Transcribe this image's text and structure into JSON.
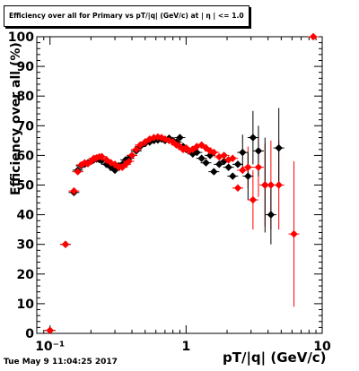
{
  "chart_data": {
    "type": "scatter",
    "title": "Efficiency over all for Primary vs pT/|q| (GeV/c) at | η | <= 1.0",
    "xlabel": "pT/|q| (GeV/c)",
    "ylabel": "Efficiency over all (%)",
    "x_scale": "log",
    "xlim": [
      0.08,
      10
    ],
    "ylim": [
      0,
      100
    ],
    "x_tick_labels": [
      "10⁻¹",
      "1",
      "10"
    ],
    "y_tick_labels": [
      "0",
      "10",
      "20",
      "30",
      "40",
      "50",
      "60",
      "70",
      "80",
      "90",
      "100"
    ],
    "grid": false,
    "series": [
      {
        "color": "#000000",
        "marker": "diamond",
        "points": [
          {
            "x": 0.1,
            "y": 1
          },
          {
            "x": 0.13,
            "y": 30
          },
          {
            "x": 0.15,
            "y": 47.5
          },
          {
            "x": 0.16,
            "y": 55
          },
          {
            "x": 0.17,
            "y": 56.5
          },
          {
            "x": 0.18,
            "y": 57
          },
          {
            "x": 0.19,
            "y": 57.5
          },
          {
            "x": 0.2,
            "y": 58
          },
          {
            "x": 0.21,
            "y": 58.5
          },
          {
            "x": 0.22,
            "y": 58.8
          },
          {
            "x": 0.23,
            "y": 58.6
          },
          {
            "x": 0.24,
            "y": 58.2
          },
          {
            "x": 0.26,
            "y": 57
          },
          {
            "x": 0.28,
            "y": 56
          },
          {
            "x": 0.3,
            "y": 55
          },
          {
            "x": 0.32,
            "y": 56.5
          },
          {
            "x": 0.34,
            "y": 57
          },
          {
            "x": 0.36,
            "y": 58.5
          },
          {
            "x": 0.38,
            "y": 59
          },
          {
            "x": 0.4,
            "y": 60
          },
          {
            "x": 0.43,
            "y": 61.5
          },
          {
            "x": 0.46,
            "y": 63
          },
          {
            "x": 0.5,
            "y": 64
          },
          {
            "x": 0.54,
            "y": 64.5
          },
          {
            "x": 0.58,
            "y": 65
          },
          {
            "x": 0.62,
            "y": 65.2
          },
          {
            "x": 0.66,
            "y": 65.5
          },
          {
            "x": 0.7,
            "y": 65
          },
          {
            "x": 0.75,
            "y": 65.8
          },
          {
            "x": 0.8,
            "y": 65
          },
          {
            "x": 0.85,
            "y": 64.5
          },
          {
            "x": 0.9,
            "y": 66
          },
          {
            "x": 0.95,
            "y": 63
          },
          {
            "x": 1.0,
            "y": 62
          },
          {
            "x": 1.05,
            "y": 61.5
          },
          {
            "x": 1.12,
            "y": 60.5
          },
          {
            "x": 1.2,
            "y": 61
          },
          {
            "x": 1.3,
            "y": 59
          },
          {
            "x": 1.4,
            "y": 57.5
          },
          {
            "x": 1.5,
            "y": 60
          },
          {
            "x": 1.6,
            "y": 54.5
          },
          {
            "x": 1.75,
            "y": 57
          },
          {
            "x": 1.9,
            "y": 58
          },
          {
            "x": 2.05,
            "y": 56
          },
          {
            "x": 2.2,
            "y": 53
          },
          {
            "x": 2.4,
            "y": 57
          },
          {
            "x": 2.6,
            "y": 61
          },
          {
            "x": 2.85,
            "y": 53
          },
          {
            "x": 3.1,
            "y": 66
          },
          {
            "x": 3.4,
            "y": 61.5
          },
          {
            "x": 3.8,
            "y": 50
          },
          {
            "x": 4.2,
            "y": 40
          },
          {
            "x": 4.8,
            "y": 62.5
          }
        ]
      },
      {
        "color": "#ff0000",
        "marker": "diamond",
        "points": [
          {
            "x": 0.1,
            "y": 1
          },
          {
            "x": 0.13,
            "y": 30
          },
          {
            "x": 0.15,
            "y": 48
          },
          {
            "x": 0.16,
            "y": 54.5
          },
          {
            "x": 0.17,
            "y": 56.8
          },
          {
            "x": 0.18,
            "y": 57.5
          },
          {
            "x": 0.19,
            "y": 57.2
          },
          {
            "x": 0.2,
            "y": 58
          },
          {
            "x": 0.21,
            "y": 59
          },
          {
            "x": 0.22,
            "y": 59.2
          },
          {
            "x": 0.23,
            "y": 59.5
          },
          {
            "x": 0.24,
            "y": 59.6
          },
          {
            "x": 0.26,
            "y": 58.5
          },
          {
            "x": 0.28,
            "y": 57.5
          },
          {
            "x": 0.3,
            "y": 57
          },
          {
            "x": 0.32,
            "y": 56
          },
          {
            "x": 0.34,
            "y": 56
          },
          {
            "x": 0.36,
            "y": 57
          },
          {
            "x": 0.38,
            "y": 58
          },
          {
            "x": 0.4,
            "y": 60
          },
          {
            "x": 0.43,
            "y": 62
          },
          {
            "x": 0.46,
            "y": 63.5
          },
          {
            "x": 0.5,
            "y": 64.5
          },
          {
            "x": 0.54,
            "y": 65.5
          },
          {
            "x": 0.58,
            "y": 66
          },
          {
            "x": 0.62,
            "y": 66.2
          },
          {
            "x": 0.66,
            "y": 66
          },
          {
            "x": 0.7,
            "y": 65.5
          },
          {
            "x": 0.75,
            "y": 65
          },
          {
            "x": 0.8,
            "y": 64.5
          },
          {
            "x": 0.85,
            "y": 63.5
          },
          {
            "x": 0.9,
            "y": 63
          },
          {
            "x": 0.95,
            "y": 62
          },
          {
            "x": 1.0,
            "y": 62.5
          },
          {
            "x": 1.05,
            "y": 61.5
          },
          {
            "x": 1.12,
            "y": 62
          },
          {
            "x": 1.2,
            "y": 63
          },
          {
            "x": 1.3,
            "y": 63.5
          },
          {
            "x": 1.4,
            "y": 62.5
          },
          {
            "x": 1.5,
            "y": 61.5
          },
          {
            "x": 1.6,
            "y": 61
          },
          {
            "x": 1.75,
            "y": 59.5
          },
          {
            "x": 1.9,
            "y": 60
          },
          {
            "x": 2.05,
            "y": 58.5
          },
          {
            "x": 2.2,
            "y": 59
          },
          {
            "x": 2.4,
            "y": 49
          },
          {
            "x": 2.6,
            "y": 55
          },
          {
            "x": 2.85,
            "y": 56
          },
          {
            "x": 3.1,
            "y": 45
          },
          {
            "x": 3.4,
            "y": 56
          },
          {
            "x": 3.8,
            "y": 50
          },
          {
            "x": 4.2,
            "y": 50
          },
          {
            "x": 4.8,
            "y": 50
          },
          {
            "x": 6.2,
            "y": 33.5
          },
          {
            "x": 8.6,
            "y": 100
          }
        ],
        "error_bars": [
          {
            "x": 2.85,
            "low": 49,
            "high": 63
          },
          {
            "x": 3.1,
            "low": 35,
            "high": 55
          },
          {
            "x": 3.4,
            "low": 46,
            "high": 66
          },
          {
            "x": 3.8,
            "low": 36,
            "high": 64
          },
          {
            "x": 4.2,
            "low": 35,
            "high": 65
          },
          {
            "x": 4.8,
            "low": 35,
            "high": 65
          },
          {
            "x": 6.2,
            "low": 9,
            "high": 58
          }
        ]
      },
      {
        "color": "#000000",
        "role": "error_bars_black",
        "error_bars": [
          {
            "x": 2.6,
            "low": 55,
            "high": 67
          },
          {
            "x": 2.85,
            "low": 45,
            "high": 61
          },
          {
            "x": 3.1,
            "low": 57,
            "high": 75
          },
          {
            "x": 3.4,
            "low": 53,
            "high": 70
          },
          {
            "x": 3.8,
            "low": 34,
            "high": 66
          },
          {
            "x": 4.2,
            "low": 30,
            "high": 50
          },
          {
            "x": 4.8,
            "low": 49,
            "high": 76
          }
        ]
      }
    ],
    "footer": "Tue May  9 11:04:25 2017"
  },
  "colors": {
    "primary": "#000000",
    "secondary": "#ff0000",
    "background": "#ffffff"
  }
}
